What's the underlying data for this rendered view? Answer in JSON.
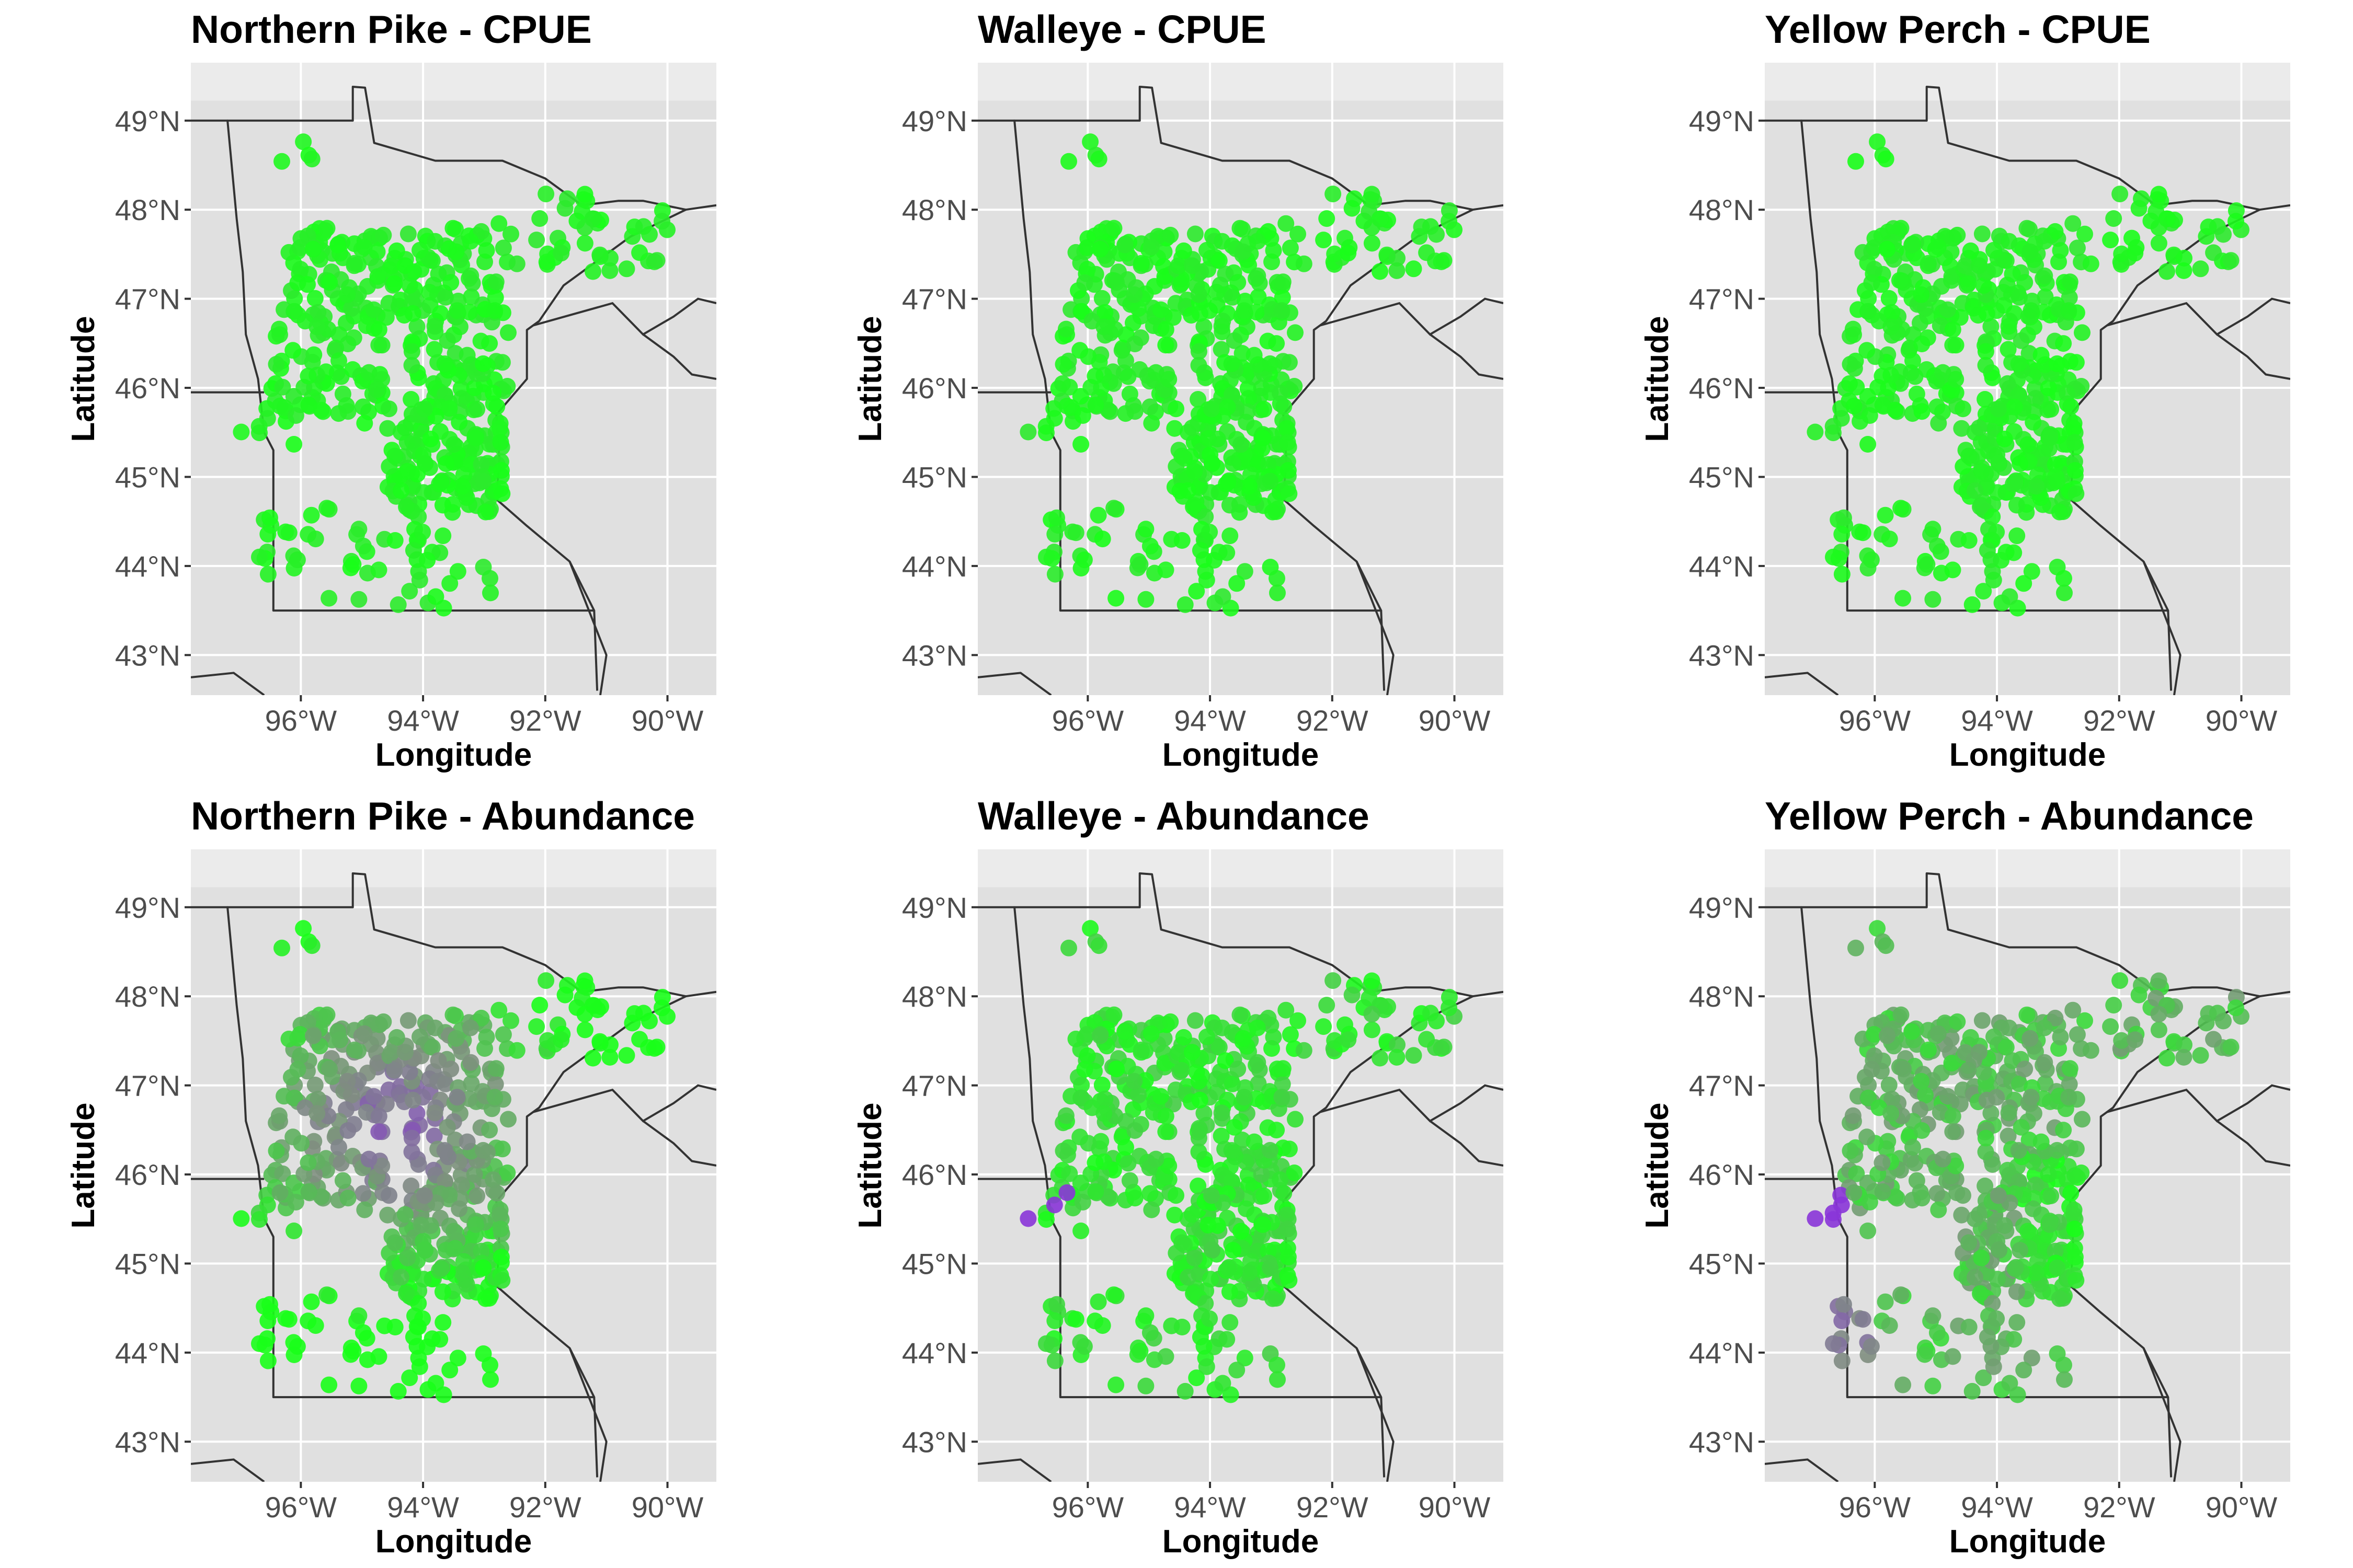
{
  "figure": {
    "lon_range": [
      -97.8,
      -89.2
    ],
    "lat_range": [
      42.55,
      49.65
    ],
    "lon_ticks": [
      -96,
      -94,
      -92,
      -90
    ],
    "lat_ticks": [
      43,
      44,
      45,
      46,
      47,
      48,
      49
    ],
    "lon_tick_labels": [
      "96°W",
      "94°W",
      "92°W",
      "90°W"
    ],
    "lat_tick_labels": [
      "43°N",
      "44°N",
      "45°N",
      "46°N",
      "47°N",
      "48°N",
      "49°N"
    ],
    "xlabel": "Longitude",
    "ylabel": "Latitude",
    "colors": {
      "panel_bg": "#ebebeb",
      "gridline": "#ffffff",
      "land": "#e0e0e0",
      "border": "#333333",
      "high": "#19ff19",
      "mid": "#7f8f7f",
      "low": "#8a2be2"
    }
  },
  "panels": [
    {
      "title": "Northern Pike - CPUE",
      "scheme": "uniform"
    },
    {
      "title": "Walleye - CPUE",
      "scheme": "uniform"
    },
    {
      "title": "Yellow Perch - CPUE",
      "scheme": "uniform"
    },
    {
      "title": "Northern Pike - Abundance",
      "scheme": "purple-central"
    },
    {
      "title": "Walleye - Abundance",
      "scheme": "green-mostly"
    },
    {
      "title": "Yellow Perch - Abundance",
      "scheme": "mixed"
    }
  ],
  "chart_data": {
    "type": "scatter",
    "x_name": "Longitude",
    "y_name": "Latitude",
    "point_groups": [
      {
        "region": "northwest outliers",
        "lon": [
          -96.6,
          -95.4
        ],
        "lat": [
          48.4,
          48.8
        ],
        "n": 4
      },
      {
        "region": "northeast arrowhead",
        "lon": [
          -93.0,
          -90.0
        ],
        "lat": [
          47.3,
          48.2
        ],
        "n": 45
      },
      {
        "region": "north central",
        "lon": [
          -96.2,
          -92.8
        ],
        "lat": [
          46.8,
          47.8
        ],
        "n": 150
      },
      {
        "region": "central west",
        "lon": [
          -96.5,
          -94.6
        ],
        "lat": [
          45.6,
          46.9
        ],
        "n": 80
      },
      {
        "region": "central east",
        "lon": [
          -94.2,
          -92.6
        ],
        "lat": [
          45.8,
          46.9
        ],
        "n": 70
      },
      {
        "region": "metro",
        "lon": [
          -94.6,
          -92.7
        ],
        "lat": [
          44.6,
          45.8
        ],
        "n": 140
      },
      {
        "region": "western edge",
        "lon": [
          -97.0,
          -96.0
        ],
        "lat": [
          45.3,
          45.8
        ],
        "n": 8
      },
      {
        "region": "southwest",
        "lon": [
          -96.7,
          -95.7
        ],
        "lat": [
          43.9,
          44.6
        ],
        "n": 15
      },
      {
        "region": "south",
        "lon": [
          -95.8,
          -92.8
        ],
        "lat": [
          43.5,
          44.7
        ],
        "n": 40
      }
    ]
  }
}
